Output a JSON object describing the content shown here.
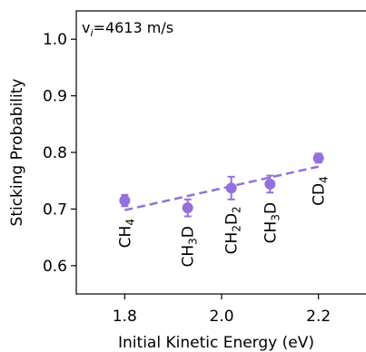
{
  "chart_data": {
    "type": "scatter",
    "annotation": "v",
    "annotation_sub": "i",
    "annotation_rest": "=4613 m/s",
    "xlabel": "Initial Kinetic Energy (eV)",
    "ylabel": "Sticking Probability",
    "xlim": [
      1.7,
      2.3
    ],
    "ylim": [
      0.55,
      1.05
    ],
    "xticks": [
      1.8,
      2.0,
      2.2
    ],
    "xtick_labels": [
      "1.8",
      "2.0",
      "2.2"
    ],
    "yticks": [
      0.6,
      0.7,
      0.8,
      0.9,
      1.0
    ],
    "ytick_labels": [
      "0.6",
      "0.7",
      "0.8",
      "0.9",
      "1.0"
    ],
    "marker_color": "#9370DB",
    "points": [
      {
        "x": 1.8,
        "y": 0.715,
        "err": 0.01,
        "label_main": "CH",
        "label_sub": "4"
      },
      {
        "x": 1.93,
        "y": 0.702,
        "err": 0.015,
        "label_main": "CH",
        "label_sub": "3",
        "label_tail": "D"
      },
      {
        "x": 2.02,
        "y": 0.737,
        "err": 0.02,
        "label_main": "CH",
        "label_sub": "2",
        "label_tail": "D",
        "label_tail_sub": "2"
      },
      {
        "x": 2.1,
        "y": 0.744,
        "err": 0.015,
        "label_main": "CH",
        "label_sub": "3",
        "label_tail": "D"
      },
      {
        "x": 2.2,
        "y": 0.79,
        "err": 0.008,
        "label_main": "CD",
        "label_sub": "4"
      }
    ],
    "fit_line": {
      "x": [
        1.8,
        2.2
      ],
      "y": [
        0.698,
        0.775
      ],
      "style": "dashed"
    },
    "grid": false,
    "legend": "none"
  }
}
